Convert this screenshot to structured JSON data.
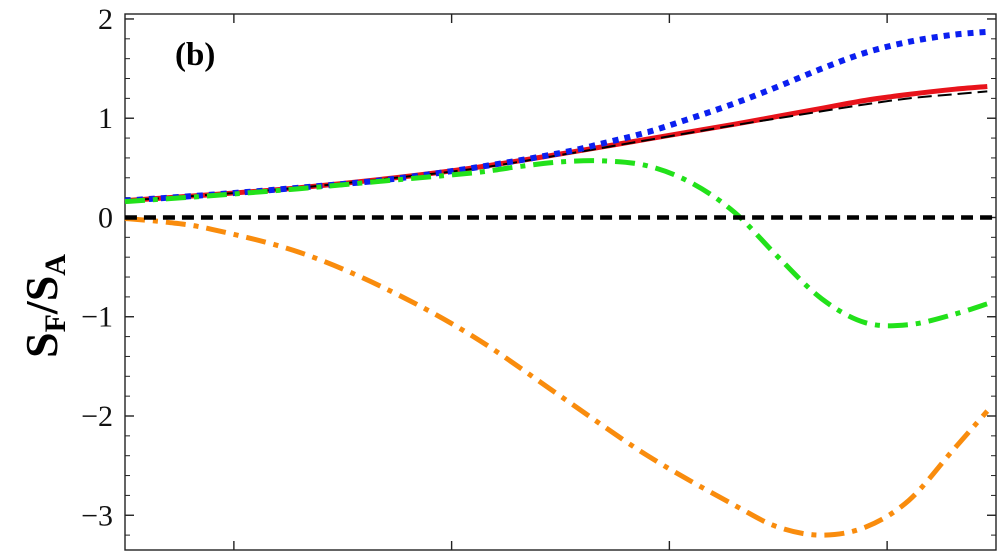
{
  "chart_data": {
    "type": "line",
    "panel_label": "(b)",
    "ylabel": {
      "main": "S",
      "sub1": "F",
      "slash": "/S",
      "sub2": "A"
    },
    "xlabel": "",
    "xlim": [
      0,
      1
    ],
    "ylim": [
      -3.35,
      2.05
    ],
    "x_ticks": [
      0.125,
      0.375,
      0.625,
      0.875
    ],
    "y_ticks": [
      {
        "value": 2,
        "label": "2"
      },
      {
        "value": 1,
        "label": "1"
      },
      {
        "value": 0,
        "label": "0"
      },
      {
        "value": -1,
        "label": "−1"
      },
      {
        "value": -2,
        "label": "−2"
      },
      {
        "value": -3,
        "label": "−3"
      }
    ],
    "grid": false,
    "legend": "none",
    "series": [
      {
        "id": "zero-line",
        "color": "#000000",
        "style": "dashed-thick",
        "x": [
          0.0,
          1.0
        ],
        "y": [
          0.0,
          0.0
        ]
      },
      {
        "id": "solid-red",
        "color": "#e8131b",
        "style": "solid",
        "x": [
          0.0,
          0.1,
          0.2,
          0.3,
          0.4,
          0.5,
          0.6,
          0.7,
          0.75,
          0.8,
          0.85,
          0.9,
          0.95,
          0.99
        ],
        "y": [
          0.17,
          0.23,
          0.3,
          0.39,
          0.5,
          0.64,
          0.79,
          0.94,
          1.02,
          1.1,
          1.18,
          1.24,
          1.29,
          1.32
        ]
      },
      {
        "id": "thin-black-dashed",
        "color": "#000000",
        "style": "dashed-thin",
        "x": [
          0.0,
          0.1,
          0.2,
          0.3,
          0.4,
          0.5,
          0.6,
          0.7,
          0.75,
          0.8,
          0.85,
          0.9,
          0.95,
          0.99
        ],
        "y": [
          0.17,
          0.23,
          0.3,
          0.39,
          0.49,
          0.63,
          0.78,
          0.93,
          1.0,
          1.07,
          1.14,
          1.2,
          1.24,
          1.27
        ]
      },
      {
        "id": "dotted-blue",
        "color": "#0b1ff0",
        "style": "dotted",
        "x": [
          0.0,
          0.1,
          0.2,
          0.3,
          0.4,
          0.5,
          0.55,
          0.6,
          0.65,
          0.7,
          0.75,
          0.8,
          0.85,
          0.9,
          0.95,
          0.99
        ],
        "y": [
          0.17,
          0.23,
          0.3,
          0.38,
          0.5,
          0.65,
          0.75,
          0.86,
          1.0,
          1.15,
          1.32,
          1.5,
          1.66,
          1.77,
          1.84,
          1.87
        ]
      },
      {
        "id": "dash-dot-green",
        "color": "#22e11a",
        "style": "dashdot",
        "x": [
          0.0,
          0.1,
          0.2,
          0.3,
          0.4,
          0.45,
          0.5,
          0.55,
          0.6,
          0.65,
          0.7,
          0.75,
          0.8,
          0.85,
          0.9,
          0.95,
          0.99
        ],
        "y": [
          0.16,
          0.22,
          0.29,
          0.37,
          0.45,
          0.51,
          0.56,
          0.57,
          0.52,
          0.35,
          0.05,
          -0.4,
          -0.82,
          -1.06,
          -1.08,
          -0.98,
          -0.87
        ]
      },
      {
        "id": "dash-dot-orange",
        "color": "#f98c0d",
        "style": "dashdot",
        "x": [
          0.0,
          0.05,
          0.1,
          0.2,
          0.3,
          0.4,
          0.5,
          0.6,
          0.7,
          0.75,
          0.8,
          0.85,
          0.9,
          0.95,
          0.99
        ],
        "y": [
          -0.01,
          -0.05,
          -0.12,
          -0.35,
          -0.72,
          -1.2,
          -1.8,
          -2.4,
          -2.9,
          -3.12,
          -3.2,
          -3.12,
          -2.85,
          -2.35,
          -1.95
        ]
      }
    ]
  }
}
